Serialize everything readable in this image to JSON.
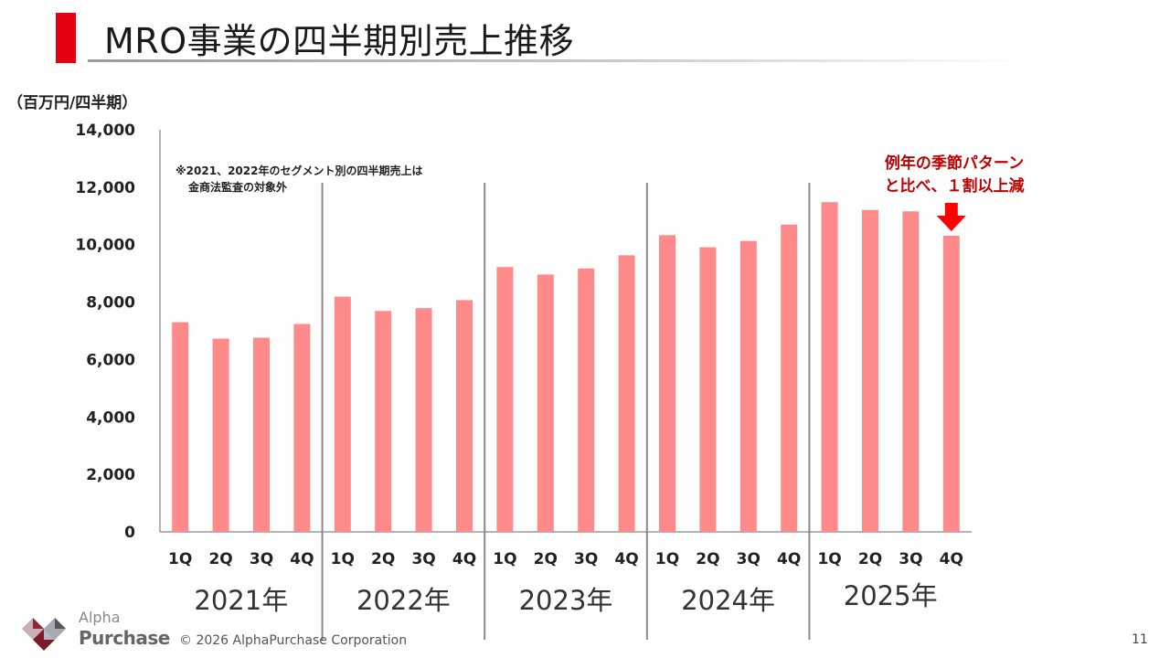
{
  "header": {
    "title": "MRO事業の四半期別売上推移"
  },
  "unit_label": "（百万円/四半期）",
  "note": {
    "line1": "※2021、2022年のセグメント別の四半期売上は",
    "line2": "金商法監査の対象外"
  },
  "callout": {
    "line1": "例年の季節パターン",
    "line2": "と比べ、１割以上減",
    "arrow_icon": "down-arrow-icon"
  },
  "colors": {
    "bar": "#ff8a8a",
    "accent": "#e50012",
    "callout": "#c00000",
    "arrow": "#ff0000"
  },
  "chart_data": {
    "type": "bar",
    "title": "MRO事業の四半期別売上推移",
    "ylabel": "（百万円/四半期）",
    "ylim": [
      0,
      14000
    ],
    "yticks": [
      0,
      2000,
      4000,
      6000,
      8000,
      10000,
      12000,
      14000
    ],
    "ytick_labels": [
      "0",
      "2,000",
      "4,000",
      "6,000",
      "8,000",
      "10,000",
      "12,000",
      "14,000"
    ],
    "groups": [
      "2021年",
      "2022年",
      "2023年",
      "2024年",
      "2025年"
    ],
    "categories": [
      "1Q",
      "2Q",
      "3Q",
      "4Q",
      "1Q",
      "2Q",
      "3Q",
      "4Q",
      "1Q",
      "2Q",
      "3Q",
      "4Q",
      "1Q",
      "2Q",
      "3Q",
      "4Q",
      "1Q",
      "2Q",
      "3Q",
      "4Q"
    ],
    "values": [
      7300,
      6730,
      6760,
      7240,
      8190,
      7690,
      7790,
      8070,
      9220,
      8960,
      9170,
      9630,
      10330,
      9910,
      10130,
      10700,
      11480,
      11210,
      11160,
      10310
    ],
    "grid": false
  },
  "footer": {
    "copyright": "© 2026 AlphaPurchase Corporation",
    "page": "11"
  },
  "logo": {
    "line1": "Alpha",
    "line2": "Purchase"
  }
}
